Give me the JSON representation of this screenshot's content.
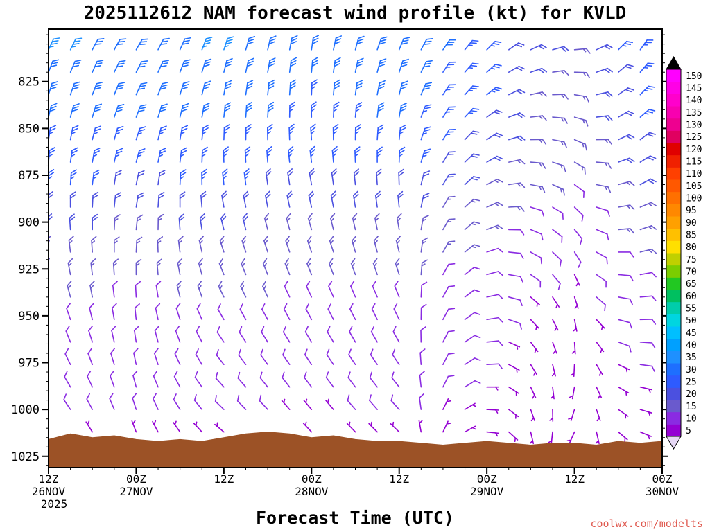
{
  "title": "2025112612 NAM forecast wind profile (kt) for KVLD",
  "xlabel": "Forecast Time (UTC)",
  "watermark": "coolwx.com/modelts",
  "chart_data": {
    "type": "scatter",
    "glyph": "wind_barb",
    "description": "Time-height cross-section of NAM forecast wind barbs (kt), colored by wind speed; brown region is terrain/surface pressure.",
    "station": "KVLD",
    "model_run": "2025112612 NAM",
    "units": "kt",
    "x_axis": {
      "label": "Forecast Time (UTC)",
      "range": [
        0,
        84
      ],
      "minor_tick_hours": 3,
      "major_ticks": [
        {
          "hour": 0,
          "label": "12Z",
          "date": "26NOV",
          "year": "2025"
        },
        {
          "hour": 12,
          "label": "00Z",
          "date": "27NOV"
        },
        {
          "hour": 24,
          "label": "12Z"
        },
        {
          "hour": 36,
          "label": "00Z",
          "date": "28NOV"
        },
        {
          "hour": 48,
          "label": "12Z"
        },
        {
          "hour": 60,
          "label": "00Z",
          "date": "29NOV"
        },
        {
          "hour": 72,
          "label": "12Z"
        },
        {
          "hour": 84,
          "label": "00Z",
          "date": "30NOV"
        }
      ]
    },
    "y_axis": {
      "unit": "hPa",
      "range": [
        797,
        1031
      ],
      "ticks": [
        825,
        850,
        875,
        900,
        925,
        950,
        975,
        1000,
        1025
      ],
      "minor_tick_step": 5
    },
    "colorbar": {
      "unit": "kt",
      "levels": [
        5,
        10,
        15,
        20,
        25,
        30,
        35,
        40,
        45,
        50,
        55,
        60,
        65,
        70,
        75,
        80,
        85,
        90,
        95,
        100,
        105,
        110,
        115,
        120,
        125,
        130,
        135,
        140,
        145,
        150
      ],
      "colors": [
        "#9400D3",
        "#8A2BE2",
        "#6A5ACD",
        "#4B50E0",
        "#2E5BFF",
        "#1E6FFF",
        "#1E90FF",
        "#00A0FF",
        "#00BFFF",
        "#00D5E0",
        "#00CDAA",
        "#00C060",
        "#22C822",
        "#7CCD00",
        "#C0D000",
        "#FFE000",
        "#FFC000",
        "#FFA000",
        "#FF8800",
        "#FF7000",
        "#FF5800",
        "#FF4000",
        "#F02000",
        "#E00000",
        "#E00060",
        "#EE0090",
        "#F800B0",
        "#FF00CC",
        "#FF00E6",
        "#FF00FF"
      ],
      "over_color": "#000000",
      "under_color": "#E6D8F5"
    },
    "terrain": {
      "color": "#9C5226",
      "profile": [
        [
          0,
          1016
        ],
        [
          3,
          1013
        ],
        [
          6,
          1015
        ],
        [
          9,
          1014
        ],
        [
          12,
          1016
        ],
        [
          15,
          1017
        ],
        [
          18,
          1016
        ],
        [
          21,
          1017
        ],
        [
          24,
          1015
        ],
        [
          27,
          1013
        ],
        [
          30,
          1012
        ],
        [
          33,
          1013
        ],
        [
          36,
          1015
        ],
        [
          39,
          1014
        ],
        [
          42,
          1016
        ],
        [
          45,
          1017
        ],
        [
          48,
          1017
        ],
        [
          51,
          1018
        ],
        [
          54,
          1019
        ],
        [
          57,
          1018
        ],
        [
          60,
          1017
        ],
        [
          63,
          1018
        ],
        [
          66,
          1019
        ],
        [
          69,
          1018
        ],
        [
          72,
          1018
        ],
        [
          75,
          1019
        ],
        [
          78,
          1017
        ],
        [
          81,
          1018
        ],
        [
          84,
          1017
        ]
      ]
    },
    "wind_field": {
      "note": "speeds in kt and meteorological directions (deg FROM) estimated from plot; values at key_hours, barbs plotted every step_hours",
      "key_hours": [
        0,
        12,
        24,
        36,
        48,
        60,
        66,
        72,
        78,
        84
      ],
      "step_hours": 3,
      "rows": [
        {
          "p": 808,
          "spd": [
            33,
            31,
            33,
            30,
            31,
            25,
            18,
            17,
            23,
            30
          ],
          "dir": [
            25,
            30,
            18,
            8,
            22,
            45,
            65,
            85,
            45,
            25
          ]
        },
        {
          "p": 820,
          "spd": [
            32,
            30,
            32,
            29,
            30,
            24,
            18,
            16,
            22,
            29
          ],
          "dir": [
            21,
            27,
            14,
            5,
            18,
            48,
            71,
            92,
            50,
            29
          ]
        },
        {
          "p": 832,
          "spd": [
            30,
            29,
            30,
            27,
            29,
            23,
            17,
            15,
            21,
            27
          ],
          "dir": [
            17,
            24,
            10,
            2,
            14,
            51,
            77,
            99,
            55,
            33
          ]
        },
        {
          "p": 844,
          "spd": [
            29,
            28,
            29,
            26,
            28,
            22,
            16,
            15,
            20,
            26
          ],
          "dir": [
            13,
            21,
            6,
            359,
            10,
            54,
            83,
            106,
            60,
            37
          ]
        },
        {
          "p": 856,
          "spd": [
            27,
            26,
            27,
            24,
            26,
            20,
            15,
            14,
            19,
            24
          ],
          "dir": [
            9,
            18,
            2,
            356,
            6,
            57,
            89,
            113,
            65,
            41
          ]
        },
        {
          "p": 868,
          "spd": [
            25,
            24,
            25,
            23,
            24,
            19,
            14,
            13,
            18,
            23
          ],
          "dir": [
            5,
            15,
            358,
            353,
            2,
            60,
            95,
            120,
            70,
            45
          ]
        },
        {
          "p": 880,
          "spd": [
            23,
            22,
            23,
            21,
            22,
            17,
            13,
            12,
            16,
            21
          ],
          "dir": [
            1,
            12,
            354,
            350,
            358,
            63,
            101,
            127,
            75,
            49
          ]
        },
        {
          "p": 892,
          "spd": [
            20,
            19,
            20,
            18,
            19,
            15,
            11,
            10,
            14,
            18
          ],
          "dir": [
            357,
            9,
            350,
            347,
            354,
            66,
            107,
            134,
            80,
            53
          ]
        },
        {
          "p": 904,
          "spd": [
            18,
            17,
            18,
            16,
            17,
            14,
            10,
            9,
            13,
            16
          ],
          "dir": [
            353,
            6,
            346,
            344,
            350,
            69,
            113,
            141,
            85,
            57
          ]
        },
        {
          "p": 916,
          "spd": [
            16,
            15,
            16,
            14,
            15,
            12,
            9,
            8,
            11,
            14
          ],
          "dir": [
            349,
            3,
            342,
            341,
            346,
            72,
            119,
            148,
            90,
            61
          ]
        },
        {
          "p": 928,
          "spd": [
            14,
            13,
            14,
            13,
            13,
            11,
            8,
            7,
            10,
            13
          ],
          "dir": [
            345,
            0,
            338,
            338,
            342,
            75,
            125,
            155,
            95,
            65
          ]
        },
        {
          "p": 940,
          "spd": [
            13,
            12,
            13,
            12,
            12,
            10,
            7,
            7,
            9,
            12
          ],
          "dir": [
            341,
            357,
            334,
            335,
            338,
            78,
            131,
            162,
            100,
            69
          ]
        },
        {
          "p": 952,
          "spd": [
            12,
            11,
            12,
            11,
            11,
            9,
            7,
            6,
            8,
            11
          ],
          "dir": [
            337,
            354,
            330,
            332,
            334,
            81,
            137,
            169,
            105,
            73
          ]
        },
        {
          "p": 964,
          "spd": [
            11,
            10,
            11,
            10,
            10,
            8,
            6,
            6,
            8,
            10
          ],
          "dir": [
            333,
            351,
            326,
            329,
            330,
            84,
            143,
            176,
            110,
            77
          ]
        },
        {
          "p": 976,
          "spd": [
            10,
            10,
            10,
            9,
            10,
            8,
            6,
            5,
            7,
            9
          ],
          "dir": [
            329,
            348,
            322,
            326,
            326,
            87,
            149,
            183,
            115,
            81
          ]
        },
        {
          "p": 988,
          "spd": [
            9,
            9,
            9,
            8,
            9,
            7,
            5,
            5,
            6,
            8
          ],
          "dir": [
            325,
            345,
            318,
            323,
            322,
            90,
            155,
            190,
            120,
            85
          ]
        },
        {
          "p": 1000,
          "spd": [
            8,
            8,
            8,
            7,
            8,
            6,
            4,
            4,
            6,
            7
          ],
          "dir": [
            321,
            342,
            314,
            320,
            318,
            93,
            161,
            197,
            125,
            89
          ]
        },
        {
          "p": 1012,
          "spd": [
            7,
            7,
            7,
            6,
            7,
            5,
            4,
            4,
            5,
            6
          ],
          "dir": [
            317,
            339,
            310,
            317,
            314,
            96,
            167,
            204,
            130,
            93
          ]
        }
      ]
    }
  }
}
